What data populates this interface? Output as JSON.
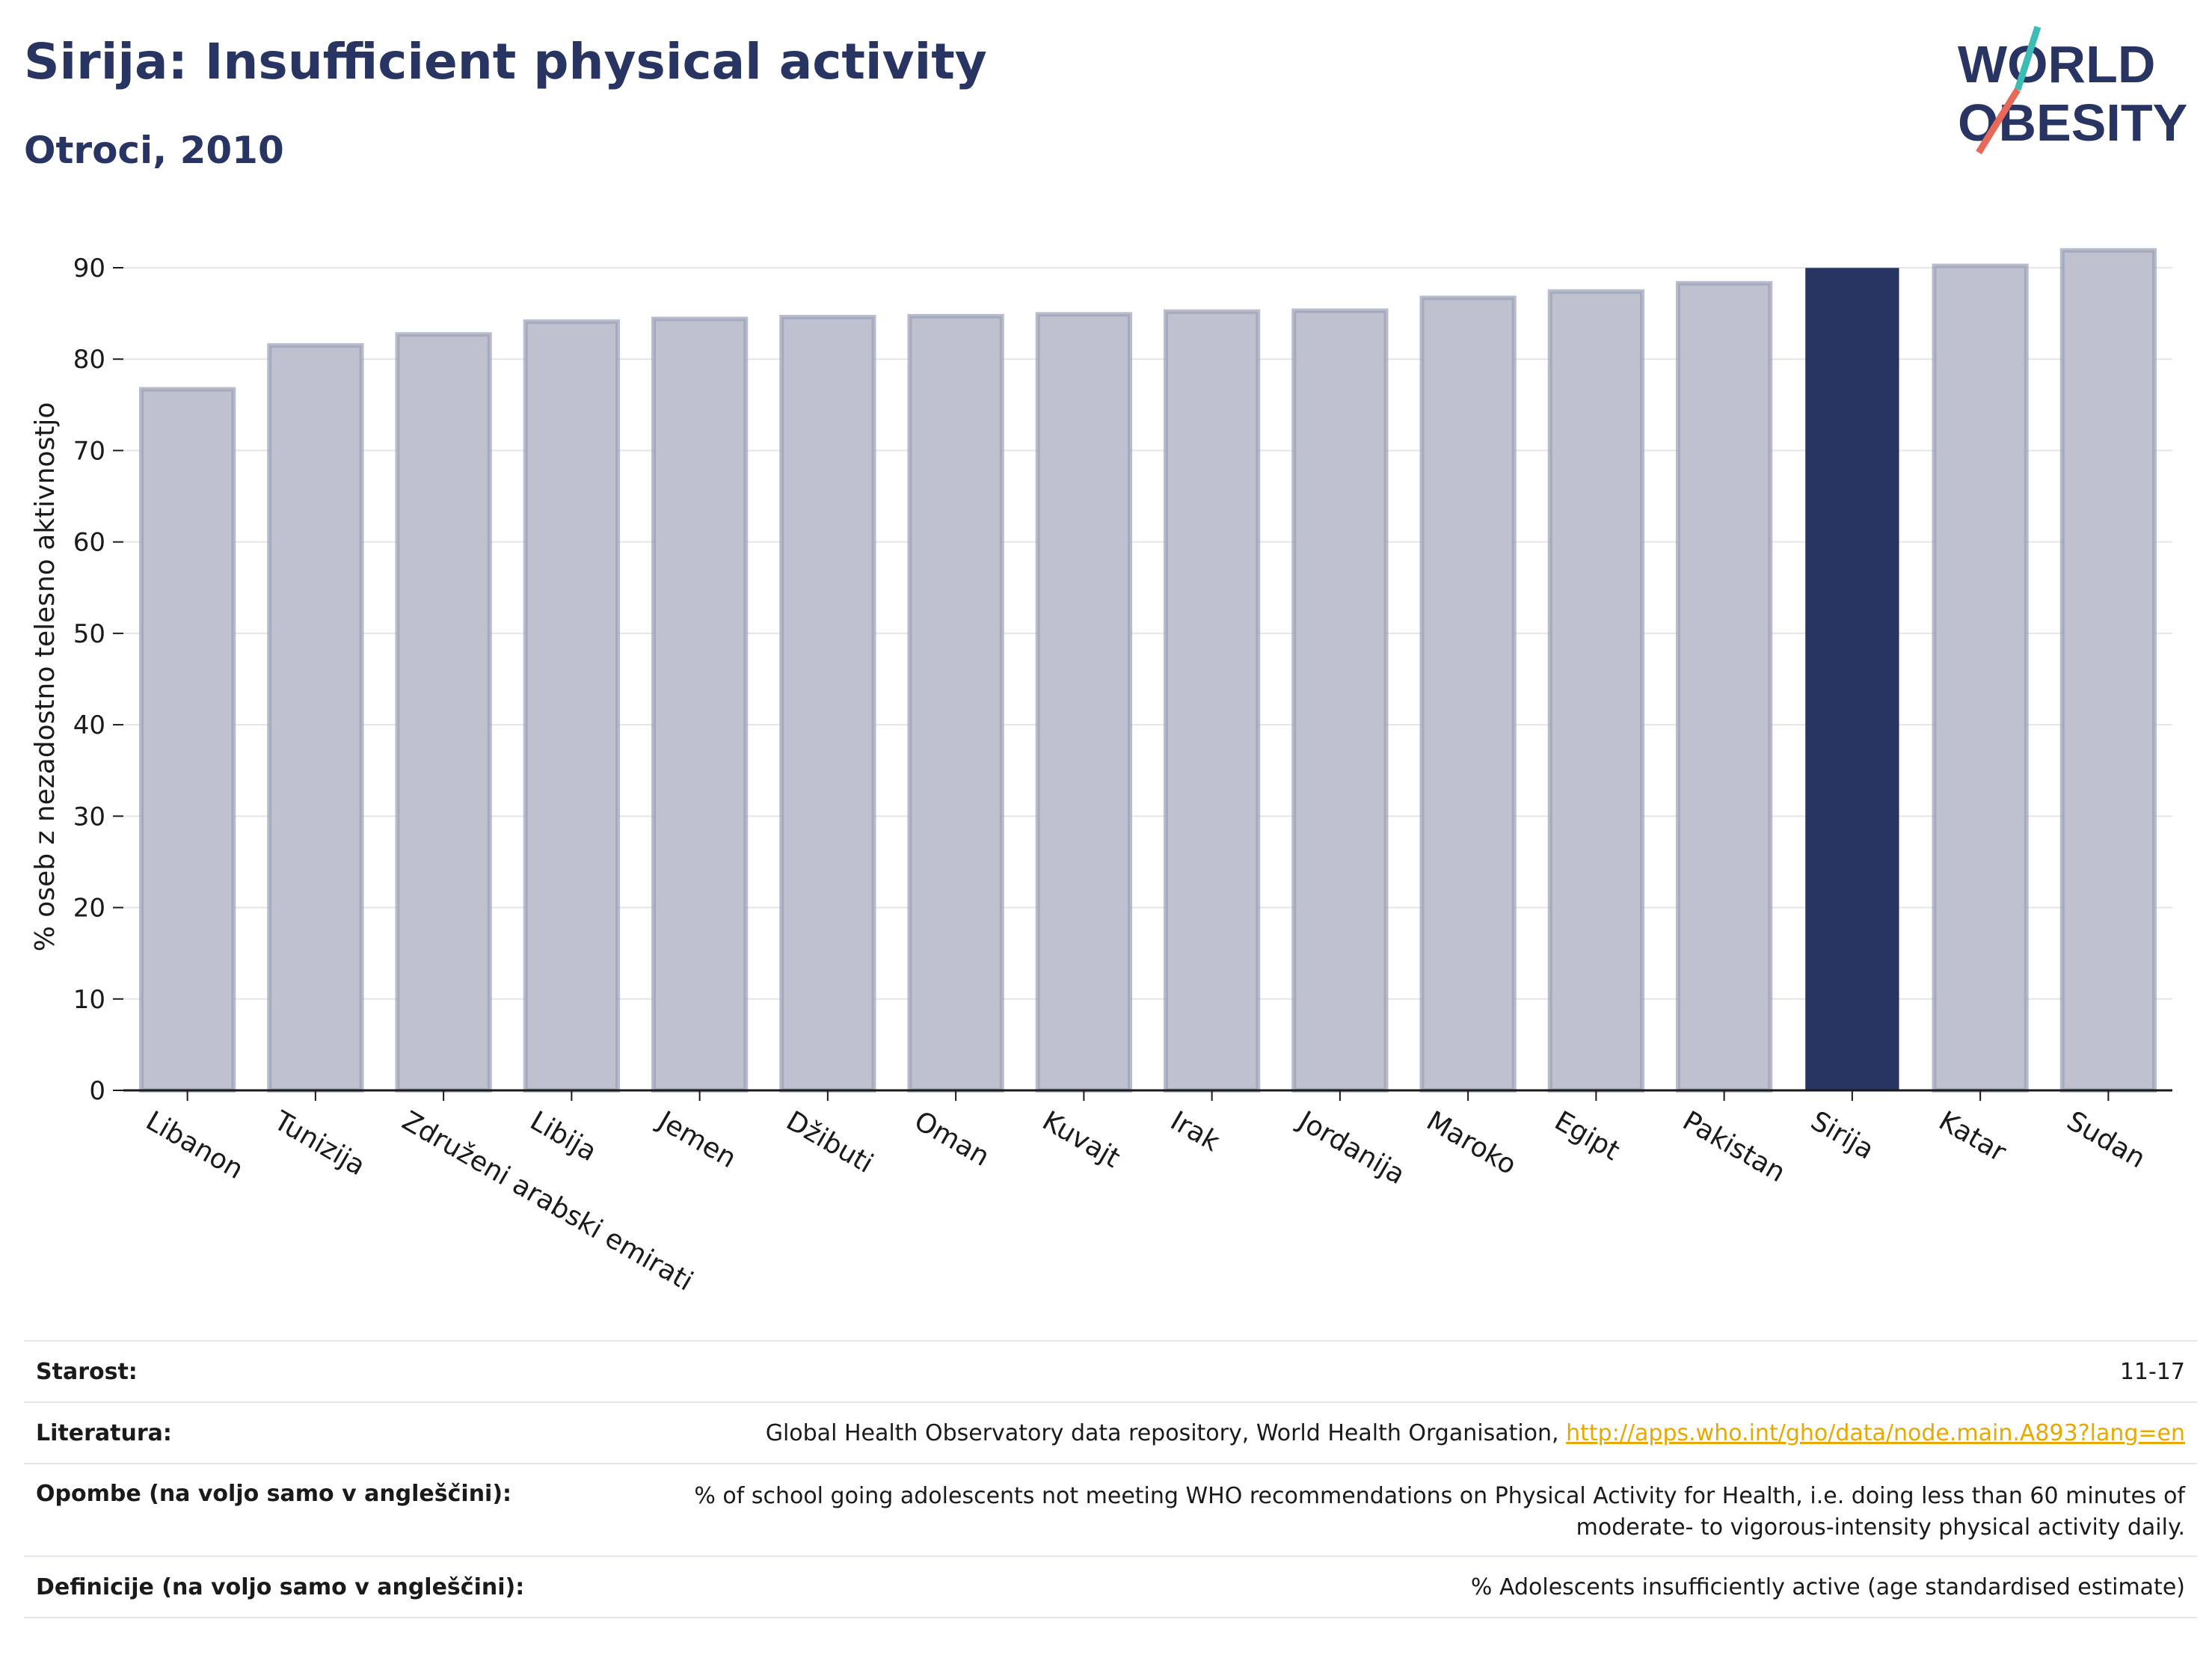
{
  "header": {
    "title": "Sirija: Insufficient physical activity",
    "subtitle": "Otroci, 2010"
  },
  "logo": {
    "line1": "WORLD",
    "line2": "OBESITY",
    "accent_teal": "#3cbcb4",
    "accent_red": "#e8685a"
  },
  "colors": {
    "highlight": "#283461",
    "bar": "#bfc2ce",
    "bar_edge": "#9aa0b8",
    "grid": "#e6e6e6"
  },
  "chart_data": {
    "type": "bar",
    "categories": [
      "Libanon",
      "Tunizija",
      "Združeni arabski emirati",
      "Libija",
      "Jemen",
      "Džibuti",
      "Oman",
      "Kuvajt",
      "Irak",
      "Jordanija",
      "Maroko",
      "Egipt",
      "Pakistan",
      "Sirija",
      "Katar",
      "Sudan"
    ],
    "values": [
      76.7,
      81.5,
      82.7,
      84.1,
      84.4,
      84.6,
      84.7,
      84.9,
      85.2,
      85.3,
      86.7,
      87.4,
      88.3,
      89.9,
      90.2,
      91.9
    ],
    "highlight": "Sirija",
    "ylabel": "% oseb z nezadostno telesno aktivnostjo",
    "xlabel": "",
    "ylim": [
      0,
      90
    ],
    "yticks": [
      0,
      10,
      20,
      30,
      40,
      50,
      60,
      70,
      80,
      90
    ],
    "grid": true
  },
  "info": {
    "age_label": "Starost:",
    "age_value": "11-17",
    "source_label": "Literatura:",
    "source_text": "Global Health Observatory data repository, World Health Organisation,",
    "source_link": "http://apps.who.int/gho/data/node.main.A893?lang=en",
    "notes_label": "Opombe (na voljo samo v angleščini):",
    "notes_line1": "% of school going adolescents not meeting WHO recommendations on Physical Activity for Health, i.e. doing less than 60 minutes of",
    "notes_line2": "moderate- to vigorous-intensity physical activity daily.",
    "definition_label": "Definicije (na voljo samo v angleščini):",
    "definition_value": "% Adolescents insufficiently active (age standardised estimate)"
  }
}
